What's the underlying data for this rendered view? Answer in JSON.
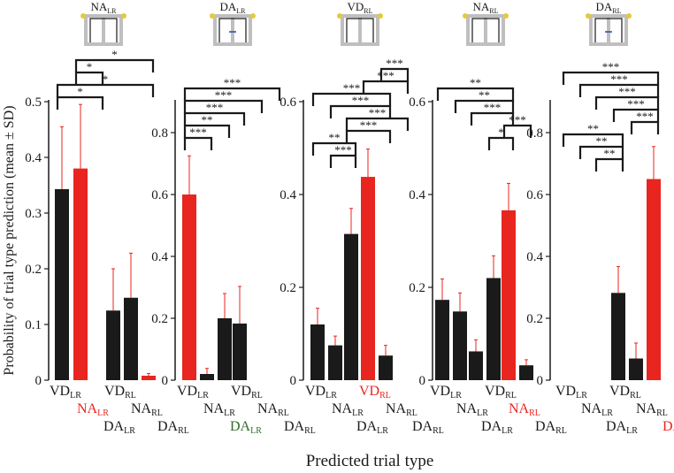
{
  "colors": {
    "black_bar": "#1a1a1a",
    "red_bar": "#e8251f",
    "green_label": "#2f6b2a",
    "red_label": "#e8251f",
    "error": "#e8251f",
    "axis": "#1a1a1a",
    "maze_frame": "#bfbfbf",
    "maze_dot": "#e8c83a",
    "maze_arrow": "#2a4aa8"
  },
  "ylabel": "Probability of trial type prediction (mean ± SD)",
  "xlabel": "Predicted trial type",
  "chart_data": [
    {
      "type": "bar",
      "title": "NA",
      "title_sub": "LR",
      "ylim": [
        0,
        0.5
      ],
      "yticks": [
        "0",
        "0.1",
        "0.2",
        "0.3",
        "0.4",
        "0.5"
      ],
      "categories": [
        {
          "main": "VD",
          "sub": "LR",
          "row": 0,
          "color": "#1a1a1a"
        },
        {
          "main": "NA",
          "sub": "LR",
          "row": 1,
          "color": "#e8251f"
        },
        {
          "main": "DA",
          "sub": "LR",
          "row": 2,
          "color": "#1a1a1a"
        },
        {
          "main": "VD",
          "sub": "RL",
          "row": 0,
          "color": "#1a1a1a"
        },
        {
          "main": "NA",
          "sub": "RL",
          "row": 1,
          "color": "#1a1a1a"
        },
        {
          "main": "DA",
          "sub": "RL",
          "row": 2,
          "color": "#1a1a1a"
        }
      ],
      "values": [
        0.343,
        0.38,
        0,
        0.125,
        0.148,
        0.008
      ],
      "errors": [
        0.112,
        0.115,
        0,
        0.075,
        0.08,
        0.004
      ],
      "bar_colors": [
        "black",
        "red",
        "black",
        "black",
        "black",
        "red"
      ],
      "significance": [
        {
          "from": 1,
          "to": 5,
          "label": "*"
        },
        {
          "from": 1,
          "to": 2,
          "label": "*"
        },
        {
          "from": 0,
          "to": 5,
          "label": "*"
        },
        {
          "from": 0,
          "to": 2,
          "label": "*"
        }
      ]
    },
    {
      "type": "bar",
      "title": "DA",
      "title_sub": "LR",
      "ylim": [
        0,
        0.9
      ],
      "yticks": [
        "0",
        "0.2",
        "0.4",
        "0.6",
        "0.8"
      ],
      "categories": [
        {
          "main": "VD",
          "sub": "LR",
          "row": 0,
          "color": "#1a1a1a"
        },
        {
          "main": "NA",
          "sub": "LR",
          "row": 1,
          "color": "#1a1a1a"
        },
        {
          "main": "DA",
          "sub": "LR",
          "row": 2,
          "color": "#2f6b2a"
        },
        {
          "main": "VD",
          "sub": "RL",
          "row": 0,
          "color": "#1a1a1a"
        },
        {
          "main": "NA",
          "sub": "RL",
          "row": 1,
          "color": "#1a1a1a"
        },
        {
          "main": "DA",
          "sub": "RL",
          "row": 2,
          "color": "#1a1a1a"
        }
      ],
      "values": [
        0.6,
        0.02,
        0.2,
        0.183,
        0,
        0
      ],
      "errors": [
        0.125,
        0.018,
        0.08,
        0.12,
        0,
        0
      ],
      "bar_colors": [
        "red",
        "black",
        "black",
        "black",
        "black",
        "black"
      ],
      "significance": [
        {
          "from": 0,
          "to": 5,
          "label": "***"
        },
        {
          "from": 0,
          "to": 4,
          "label": "***"
        },
        {
          "from": 0,
          "to": 3,
          "label": "***"
        },
        {
          "from": 0,
          "to": 2,
          "label": "**"
        },
        {
          "from": 0,
          "to": 1,
          "label": "***"
        }
      ]
    },
    {
      "type": "bar",
      "title": "VD",
      "title_sub": "RL",
      "ylim": [
        0,
        0.6
      ],
      "yticks": [
        "0",
        "0.2",
        "0.4",
        "0.6"
      ],
      "categories": [
        {
          "main": "VD",
          "sub": "LR",
          "row": 0,
          "color": "#1a1a1a"
        },
        {
          "main": "NA",
          "sub": "LR",
          "row": 1,
          "color": "#1a1a1a"
        },
        {
          "main": "DA",
          "sub": "LR",
          "row": 2,
          "color": "#1a1a1a"
        },
        {
          "main": "VD",
          "sub": "RL",
          "row": 0,
          "color": "#e8251f"
        },
        {
          "main": "NA",
          "sub": "RL",
          "row": 1,
          "color": "#1a1a1a"
        },
        {
          "main": "DA",
          "sub": "RL",
          "row": 2,
          "color": "#1a1a1a"
        }
      ],
      "values": [
        0.12,
        0.075,
        0.315,
        0.438,
        0.053,
        0
      ],
      "errors": [
        0.035,
        0.02,
        0.055,
        0.06,
        0.022,
        0
      ],
      "bar_colors": [
        "black",
        "black",
        "black",
        "red",
        "black",
        "black"
      ],
      "significance": [
        {
          "from": 4,
          "to": 5,
          "label": "***"
        },
        {
          "from": 3,
          "to": 5,
          "label": "***"
        },
        {
          "from": 0,
          "to": 4,
          "label": "***"
        },
        {
          "from": 1,
          "to": 4,
          "label": "***"
        },
        {
          "from": 2,
          "to": 5,
          "label": "***"
        },
        {
          "from": 2,
          "to": 4,
          "label": "***"
        },
        {
          "from": 0,
          "to": 2,
          "label": "**"
        },
        {
          "from": 1,
          "to": 2,
          "label": "***"
        }
      ]
    },
    {
      "type": "bar",
      "title": "NA",
      "title_sub": "RL",
      "ylim": [
        0,
        0.6
      ],
      "yticks": [
        "0",
        "0.2",
        "0.4",
        "0.6"
      ],
      "categories": [
        {
          "main": "VD",
          "sub": "LR",
          "row": 0,
          "color": "#1a1a1a"
        },
        {
          "main": "NA",
          "sub": "LR",
          "row": 1,
          "color": "#1a1a1a"
        },
        {
          "main": "DA",
          "sub": "LR",
          "row": 2,
          "color": "#1a1a1a"
        },
        {
          "main": "VD",
          "sub": "RL",
          "row": 0,
          "color": "#1a1a1a"
        },
        {
          "main": "NA",
          "sub": "RL",
          "row": 1,
          "color": "#e8251f"
        },
        {
          "main": "DA",
          "sub": "RL",
          "row": 2,
          "color": "#1a1a1a"
        }
      ],
      "values": [
        0.173,
        0.148,
        0.062,
        0.22,
        0.366,
        0.032
      ],
      "errors": [
        0.045,
        0.04,
        0.025,
        0.048,
        0.058,
        0.012
      ],
      "bar_colors": [
        "black",
        "black",
        "black",
        "black",
        "red",
        "black"
      ],
      "significance": [
        {
          "from": 0,
          "to": 4,
          "label": "**"
        },
        {
          "from": 1,
          "to": 4,
          "label": "**"
        },
        {
          "from": 2,
          "to": 4,
          "label": "***"
        },
        {
          "from": 4,
          "to": 5,
          "label": "***"
        },
        {
          "from": 3,
          "to": 4,
          "label": "*"
        }
      ]
    },
    {
      "type": "bar",
      "title": "DA",
      "title_sub": "RL",
      "ylim": [
        0,
        0.9
      ],
      "yticks": [
        "0",
        "0.2",
        "0.4",
        "0.6",
        "0.8"
      ],
      "categories": [
        {
          "main": "VD",
          "sub": "LR",
          "row": 0,
          "color": "#1a1a1a"
        },
        {
          "main": "NA",
          "sub": "LR",
          "row": 1,
          "color": "#1a1a1a"
        },
        {
          "main": "DA",
          "sub": "LR",
          "row": 2,
          "color": "#1a1a1a"
        },
        {
          "main": "VD",
          "sub": "RL",
          "row": 0,
          "color": "#1a1a1a"
        },
        {
          "main": "NA",
          "sub": "RL",
          "row": 1,
          "color": "#1a1a1a"
        },
        {
          "main": "DA",
          "sub": "RL",
          "row": 2,
          "color": "#e8251f"
        }
      ],
      "values": [
        0,
        0,
        0,
        0.282,
        0.07,
        0.65
      ],
      "errors": [
        0,
        0,
        0,
        0.085,
        0.05,
        0.105
      ],
      "bar_colors": [
        "black",
        "black",
        "black",
        "black",
        "black",
        "red"
      ],
      "significance": [
        {
          "from": 0,
          "to": 5,
          "label": "***"
        },
        {
          "from": 1,
          "to": 5,
          "label": "***"
        },
        {
          "from": 2,
          "to": 5,
          "label": "***"
        },
        {
          "from": 3,
          "to": 5,
          "label": "***"
        },
        {
          "from": 4,
          "to": 5,
          "label": "***"
        },
        {
          "from": 0,
          "to": 3,
          "label": "**"
        },
        {
          "from": 1,
          "to": 3,
          "label": "**"
        },
        {
          "from": 2,
          "to": 3,
          "label": "**"
        }
      ]
    }
  ]
}
